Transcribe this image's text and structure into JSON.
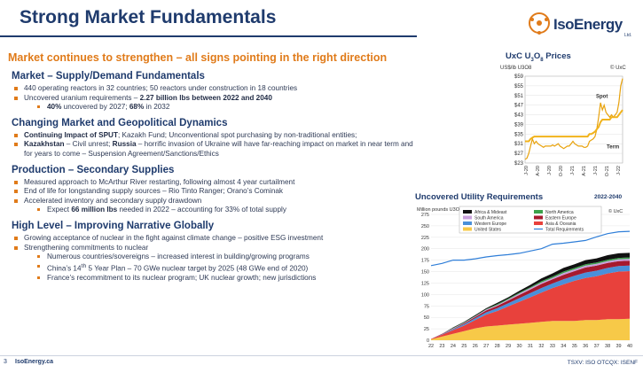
{
  "title": "Strong Market Fundamentals",
  "subtitle": "Market continues to strengthen – all signs pointing in the right direction",
  "logo": {
    "text": "IsoEnergy",
    "ltd": "Ltd."
  },
  "sections": [
    {
      "heading": "Market – Supply/Demand Fundamentals",
      "items": [
        {
          "level": 1,
          "html": "440 operating reactors in 32 countries; 50 reactors under construction in 18 countries"
        },
        {
          "level": 1,
          "html": "Uncovered uranium requirements – <b>2.27 billion lbs between 2022 and 2040</b>"
        },
        {
          "level": 2,
          "html": "<b>40%</b> uncovered by 2027; <b>68%</b> in 2032"
        }
      ]
    },
    {
      "heading": "Changing Market and Geopolitical Dynamics",
      "items": [
        {
          "level": 1,
          "html": "<b>Continuing Impact of SPUT</b>; Kazakh Fund; Unconventional spot purchasing by non-traditional entities;"
        },
        {
          "level": 1,
          "html": "<b>Kazakhstan</b> – Civil unrest; <b>Russia</b> – horrific invasion of Ukraine will have far-reaching impact on market in near term and for years to come – Suspension Agreement/Sanctions/Ethics"
        }
      ]
    },
    {
      "heading": "Production – Secondary Supplies",
      "items": [
        {
          "level": 1,
          "html": "Measured approach to McArthur River restarting, following almost 4 year curtailment"
        },
        {
          "level": 1,
          "html": "End of life for longstanding supply sources – Rio Tinto Ranger; Orano’s Cominak"
        },
        {
          "level": 1,
          "html": "Accelerated inventory and secondary supply drawdown"
        },
        {
          "level": 2,
          "html": "Expect <b>66 million lbs</b> needed in 2022 – accounting for 33% of total supply"
        }
      ]
    },
    {
      "heading": "High Level – Improving Narrative Globally",
      "items": [
        {
          "level": 1,
          "html": "Growing acceptance of nuclear in the fight against climate change – positive ESG investment"
        },
        {
          "level": 1,
          "html": "Strengthening commitments to nuclear"
        },
        {
          "level": 2,
          "html": "Numerous countries/sovereigns – increased interest in building/growing programs"
        },
        {
          "level": 2,
          "html": "China’s 14<sup>th</sup> 5 Year Plan – 70 GWe nuclear target by 2025 (48 GWe end of 2020)"
        },
        {
          "level": 2,
          "html": "France’s recommitment to its nuclear program; UK nuclear growth; new jurisdictions"
        }
      ]
    }
  ],
  "colors": {
    "navy": "#1f3b6d",
    "orange": "#e07b1a",
    "gold": "#f1b31c"
  },
  "chart_data": [
    {
      "type": "line",
      "title": "UxC U3O8 Prices",
      "ylabel": "US$/lb U3O8",
      "source": "© UxC",
      "yticks": [
        "$59",
        "$55",
        "$51",
        "$47",
        "$43",
        "$39",
        "$35",
        "$31",
        "$27",
        "$23"
      ],
      "ylim": [
        23,
        59
      ],
      "xticks": [
        "J-20",
        "A-20",
        "J-20",
        "O-20",
        "J-21",
        "A-21",
        "J-21",
        "O-21",
        "J-22"
      ],
      "series": [
        {
          "name": "Spot",
          "values": [
            24.5,
            25,
            27,
            30,
            33,
            31,
            32,
            31,
            30.5,
            30,
            29.5,
            30,
            30,
            30,
            30,
            30.5,
            30,
            30.5,
            31,
            30,
            29.5,
            29,
            29.5,
            30,
            30,
            31,
            32,
            31,
            30.5,
            30,
            30,
            30,
            29.5,
            29.5,
            30,
            32,
            32.5,
            33,
            34,
            37,
            42,
            48,
            45,
            47,
            44,
            43,
            42,
            43,
            42,
            43,
            44,
            48,
            55,
            58
          ]
        },
        {
          "name": "Term",
          "values": [
            32,
            32,
            32,
            33,
            33.5,
            34,
            34,
            34,
            34,
            34,
            34,
            34,
            34,
            34,
            34,
            34,
            34,
            34,
            34,
            34,
            34,
            34,
            34,
            34,
            34,
            34,
            34,
            34,
            34,
            34,
            34,
            34,
            34,
            34,
            34,
            35,
            35,
            35.5,
            36,
            37,
            38,
            40,
            41,
            41,
            41,
            41,
            41,
            42,
            42,
            42,
            42,
            43,
            44,
            45
          ]
        }
      ]
    },
    {
      "type": "area",
      "title": "Uncovered Utility Requirements",
      "subtitle": "2022-2040",
      "ylabel": "Million pounds U3O8",
      "source": "© UxC",
      "ylim": [
        0,
        275
      ],
      "yticks": [
        0,
        25,
        50,
        75,
        100,
        125,
        150,
        175,
        200,
        225,
        250,
        275
      ],
      "x": [
        "22",
        "23",
        "24",
        "25",
        "26",
        "27",
        "28",
        "29",
        "30",
        "31",
        "32",
        "33",
        "34",
        "35",
        "36",
        "37",
        "38",
        "39",
        "40"
      ],
      "series": [
        {
          "name": "United States",
          "color": "#f7c948",
          "values": [
            2,
            8,
            14,
            20,
            26,
            30,
            32,
            34,
            36,
            38,
            40,
            42,
            42,
            42,
            44,
            44,
            46,
            46,
            47
          ]
        },
        {
          "name": "Asia & Oceania",
          "color": "#e8413c",
          "values": [
            1,
            4,
            8,
            12,
            18,
            26,
            32,
            40,
            48,
            56,
            64,
            72,
            80,
            88,
            92,
            96,
            100,
            104,
            104
          ]
        },
        {
          "name": "Western Europe",
          "color": "#4a90d9",
          "values": [
            0,
            1,
            2,
            3,
            4,
            5,
            6,
            7,
            8,
            9,
            10,
            10,
            11,
            11,
            12,
            12,
            12,
            12,
            12
          ]
        },
        {
          "name": "Eastern Europe",
          "color": "#a6192e",
          "values": [
            0,
            1,
            1,
            2,
            3,
            4,
            5,
            6,
            7,
            8,
            9,
            9,
            10,
            10,
            11,
            11,
            11,
            11,
            11
          ]
        },
        {
          "name": "South America",
          "color": "#c9a0dc",
          "values": [
            0,
            0,
            1,
            1,
            1,
            2,
            2,
            2,
            3,
            3,
            3,
            3,
            4,
            4,
            4,
            4,
            4,
            4,
            4
          ]
        },
        {
          "name": "North America",
          "color": "#3ba14a",
          "values": [
            0,
            0,
            1,
            1,
            1,
            1,
            2,
            2,
            2,
            2,
            3,
            3,
            3,
            3,
            3,
            3,
            3,
            3,
            3
          ]
        },
        {
          "name": "Africa & Mideast",
          "color": "#111111",
          "values": [
            0,
            0,
            1,
            1,
            2,
            2,
            3,
            3,
            4,
            5,
            6,
            7,
            8,
            8,
            9,
            9,
            10,
            10,
            10
          ]
        },
        {
          "name": "Total Requirements",
          "color": "#2f7ed8",
          "type": "line",
          "values": [
            163,
            168,
            175,
            175,
            178,
            182,
            185,
            187,
            190,
            195,
            200,
            210,
            212,
            215,
            218,
            226,
            233,
            237,
            238
          ]
        }
      ]
    }
  ],
  "footer": {
    "page": "3",
    "site": "IsoEnergy.ca",
    "ticker": "TSXV: ISO OTCQX: ISENF"
  }
}
